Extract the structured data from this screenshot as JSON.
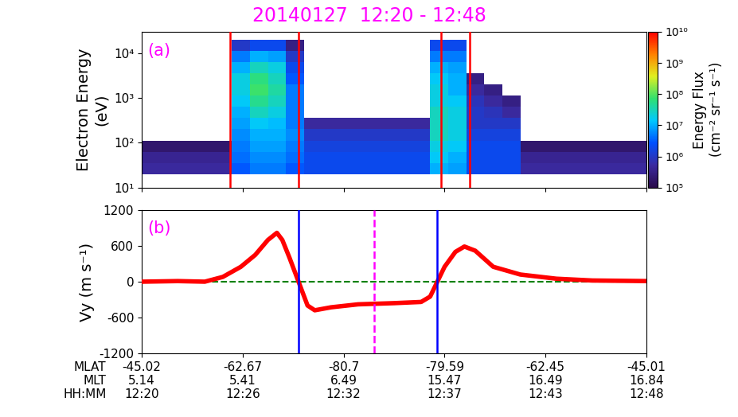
{
  "title": "20140127  12:20 - 12:48",
  "title_color": "magenta",
  "xlim": [
    0,
    28
  ],
  "xticks": [
    {
      "value": 0,
      "label": "-45.02\n5.14\n12:20"
    },
    {
      "value": 5.6,
      "label": "-62.67\n5.41\n12:26"
    },
    {
      "value": 11.2,
      "label": "-80.7\n6.49\n12:32"
    },
    {
      "value": 16.8,
      "label": "-79.59\n15.47\n12:37"
    },
    {
      "value": 22.4,
      "label": "-62.45\n16.49\n12:43"
    },
    {
      "value": 28,
      "label": "-45.01\n16.84\n12:48"
    }
  ],
  "xtick_rows": "MLAT\nMLT\nHH:MM",
  "chart_data": [
    {
      "type": "heatmap",
      "panel_label": "(a)",
      "ylabel": "Electron Energy\n(eV)",
      "log": "y",
      "tick_labels": "y",
      "ylim": [
        10,
        30000
      ],
      "yticks": [
        {
          "value": 10,
          "label": "10¹"
        },
        {
          "value": 100,
          "label": "10²"
        },
        {
          "value": 1000,
          "label": "10³"
        },
        {
          "value": 10000,
          "label": "10⁴"
        }
      ],
      "x_bins": [
        0,
        1,
        2,
        3,
        4,
        5,
        6,
        7,
        8,
        9,
        10,
        11,
        12,
        13,
        14,
        15,
        16,
        17,
        18,
        19,
        20,
        21,
        22,
        23,
        24,
        25,
        26,
        27,
        28
      ],
      "y_bins": [
        20,
        35.6,
        63.2,
        112,
        200,
        356,
        632,
        1125,
        2000,
        3557,
        6325,
        11247,
        20000
      ],
      "cells": [
        [
          500000.0,
          500000.0,
          500000.0,
          500000.0,
          500000.0,
          3000000.0,
          5000000.0,
          5000000.0,
          3000000.0,
          2000000.0,
          2000000.0,
          2000000.0,
          2000000.0,
          2000000.0,
          2000000.0,
          2000000.0,
          10000000.0,
          8000000.0,
          2000000.0,
          2000000.0,
          2000000.0,
          500000.0,
          500000.0,
          500000.0,
          500000.0,
          500000.0,
          500000.0,
          500000.0
        ],
        [
          400000.0,
          400000.0,
          400000.0,
          400000.0,
          400000.0,
          4000000.0,
          6000000.0,
          6000000.0,
          4000000.0,
          2000000.0,
          2000000.0,
          2000000.0,
          2000000.0,
          2000000.0,
          2000000.0,
          2000000.0,
          15000000.0,
          10000000.0,
          2000000.0,
          2000000.0,
          2000000.0,
          400000.0,
          400000.0,
          400000.0,
          400000.0,
          400000.0,
          400000.0,
          400000.0
        ],
        [
          200000.0,
          200000.0,
          200000.0,
          200000.0,
          200000.0,
          5000000.0,
          8000000.0,
          8000000.0,
          5000000.0,
          1500000.0,
          1500000.0,
          1500000.0,
          1500000.0,
          1500000.0,
          1500000.0,
          1500000.0,
          20000000.0,
          15000000.0,
          2000000.0,
          2000000.0,
          2000000.0,
          200000.0,
          200000.0,
          200000.0,
          200000.0,
          200000.0,
          200000.0,
          200000.0
        ],
        [
          null,
          null,
          null,
          null,
          null,
          6000000.0,
          10000000.0,
          10000000.0,
          6000000.0,
          1000000.0,
          1000000.0,
          1000000.0,
          1000000.0,
          1000000.0,
          1000000.0,
          1000000.0,
          30000000.0,
          20000000.0,
          1500000.0,
          1500000.0,
          1500000.0,
          null,
          null,
          null,
          null,
          null,
          null,
          null
        ],
        [
          null,
          null,
          null,
          null,
          null,
          8000000.0,
          15000000.0,
          12000000.0,
          5000000.0,
          500000.0,
          500000.0,
          500000.0,
          500000.0,
          500000.0,
          500000.0,
          500000.0,
          30000000.0,
          20000000.0,
          1000000.0,
          1000000.0,
          1000000.0,
          null,
          null,
          null,
          null,
          null,
          null,
          null
        ],
        [
          null,
          null,
          null,
          null,
          null,
          10000000.0,
          30000000.0,
          20000000.0,
          5000000.0,
          null,
          null,
          null,
          null,
          null,
          null,
          null,
          30000000.0,
          20000000.0,
          1000000.0,
          800000.0,
          500000.0,
          null,
          null,
          null,
          null,
          null,
          null,
          null
        ],
        [
          null,
          null,
          null,
          null,
          null,
          15000000.0,
          50000000.0,
          30000000.0,
          5000000.0,
          null,
          null,
          null,
          null,
          null,
          null,
          null,
          20000000.0,
          15000000.0,
          800000.0,
          500000.0,
          300000.0,
          null,
          null,
          null,
          null,
          null,
          null,
          null
        ],
        [
          null,
          null,
          null,
          null,
          null,
          20000000.0,
          80000000.0,
          40000000.0,
          5000000.0,
          null,
          null,
          null,
          null,
          null,
          null,
          null,
          20000000.0,
          10000000.0,
          500000.0,
          300000.0,
          null,
          null,
          null,
          null,
          null,
          null,
          null,
          null
        ],
        [
          null,
          null,
          null,
          null,
          null,
          20000000.0,
          60000000.0,
          30000000.0,
          3000000.0,
          null,
          null,
          null,
          null,
          null,
          null,
          null,
          15000000.0,
          10000000.0,
          300000.0,
          null,
          null,
          null,
          null,
          null,
          null,
          null,
          null,
          null
        ],
        [
          null,
          null,
          null,
          null,
          null,
          10000000.0,
          30000000.0,
          20000000.0,
          2000000.0,
          null,
          null,
          null,
          null,
          null,
          null,
          null,
          10000000.0,
          8000000.0,
          null,
          null,
          null,
          null,
          null,
          null,
          null,
          null,
          null,
          null
        ],
        [
          null,
          null,
          null,
          null,
          null,
          5000000.0,
          10000000.0,
          8000000.0,
          1000000.0,
          null,
          null,
          null,
          null,
          null,
          null,
          null,
          5000000.0,
          5000000.0,
          null,
          null,
          null,
          null,
          null,
          null,
          null,
          null,
          null,
          null
        ],
        [
          null,
          null,
          null,
          null,
          null,
          1000000.0,
          2000000.0,
          2000000.0,
          300000.0,
          null,
          null,
          null,
          null,
          null,
          null,
          null,
          2000000.0,
          2000000.0,
          null,
          null,
          null,
          null,
          null,
          null,
          null,
          null,
          null,
          null
        ]
      ],
      "colorbar": {
        "label": "Energy Flux\n(cm⁻² sr⁻¹ s⁻¹)",
        "range": [
          100000.0,
          10000000000.0
        ],
        "ticks": [
          {
            "value": 100000.0,
            "label": "10⁵"
          },
          {
            "value": 1000000.0,
            "label": "10⁶"
          },
          {
            "value": 10000000.0,
            "label": "10⁷"
          },
          {
            "value": 100000000.0,
            "label": "10⁸"
          },
          {
            "value": 1000000000.0,
            "label": "10⁹"
          },
          {
            "value": 10000000000.0,
            "label": "10¹⁰"
          }
        ]
      },
      "vlines": [
        {
          "x": [
            4.9,
            8.7,
            16.6,
            18.2
          ],
          "color": "red",
          "line_style": "solid"
        }
      ]
    },
    {
      "type": "line",
      "panel_label": "(b)",
      "ylabel": "Vy (m s⁻¹)",
      "ylim": [
        -1200,
        1200
      ],
      "yticks": [
        -1200,
        -600,
        0,
        600,
        1200
      ],
      "x": [
        0,
        2,
        3.5,
        4.5,
        5.5,
        6.3,
        7.0,
        7.5,
        7.8,
        8.2,
        8.7,
        9.2,
        9.6,
        10.5,
        12,
        14,
        15.5,
        16.0,
        16.4,
        16.8,
        17.4,
        17.9,
        18.5,
        19.5,
        21,
        23,
        25,
        28
      ],
      "values": [
        0,
        10,
        0,
        80,
        250,
        450,
        700,
        820,
        700,
        400,
        0,
        -400,
        -480,
        -430,
        -380,
        -360,
        -340,
        -250,
        0,
        250,
        500,
        590,
        520,
        250,
        120,
        50,
        20,
        10
      ],
      "color": "red",
      "hlines": [
        {
          "y": [
            0
          ],
          "color": "green",
          "line_style": "dashed"
        }
      ],
      "vlines": [
        {
          "x": [
            8.7,
            16.4
          ],
          "color": "blue",
          "line_style": "solid"
        },
        {
          "x": [
            12.9
          ],
          "color": "magenta",
          "line_style": "dashed"
        }
      ]
    }
  ]
}
